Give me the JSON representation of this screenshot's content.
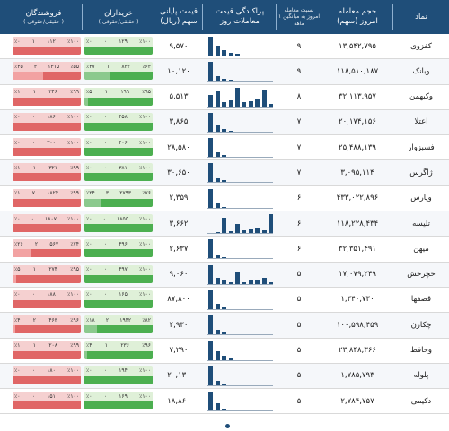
{
  "header": {
    "name": "نماد",
    "volume": "حجم معامله",
    "volume_sub": "امروز (سهم)",
    "ratio": "نسبت معامله",
    "ratio_sub": "امروز به میانگین ۱ ماهه",
    "dispersion": "پراکندگی قیمت",
    "dispersion_sub": "معاملات روز",
    "price": "قیمت پایانی",
    "price_sub": "سهم (ریال)",
    "buyers": "خریداران",
    "buyers_sub": "( حقیقی/حقوقی )",
    "sellers": "فروشندگان",
    "sellers_sub": "( حقیقی/حقوقی )"
  },
  "rows": [
    {
      "name": "کفزوی",
      "volume": "۱۳,۵۴۲,۷۹۵",
      "ratio": "۹",
      "price": "۹,۵۷۰",
      "bars": [
        0,
        0,
        0,
        0,
        0,
        3,
        4,
        7,
        12,
        22
      ],
      "buy": {
        "a": "٪۱۰۰",
        "b": "۱۲۹",
        "c": "٪۰",
        "d": "۰"
      },
      "sell": {
        "a": "٪۱۰۰",
        "b": "۱۱۲",
        "c": "٪۰",
        "d": "۱"
      }
    },
    {
      "name": "وبانک",
      "volume": "۱۱۸,۵۱۰,۱۸۷",
      "ratio": "۹",
      "price": "۱۰,۱۲۰",
      "bars": [
        0,
        0,
        0,
        0,
        0,
        0,
        2,
        3,
        6,
        20
      ],
      "buy": {
        "a": "٪۶۳",
        "b": "۸۳۲",
        "c": "٪۳۷",
        "d": "۱"
      },
      "sell": {
        "a": "٪۵۵",
        "b": "۱۳۱۵",
        "c": "٪۴۵",
        "d": "۳"
      }
    },
    {
      "name": "وکبهمن",
      "volume": "۳۲,۱۱۳,۹۵۷",
      "ratio": "۸",
      "price": "۵,۵۱۳",
      "bars": [
        3,
        18,
        8,
        6,
        5,
        20,
        7,
        5,
        16,
        12
      ],
      "buy": {
        "a": "٪۹۵",
        "b": "۱۹۹",
        "c": "٪۵",
        "d": "۱"
      },
      "sell": {
        "a": "٪۹۹",
        "b": "۲۴۶",
        "c": "٪۱",
        "d": "۱"
      }
    },
    {
      "name": "اعتلا",
      "volume": "۲۰,۱۷۴,۱۵۶",
      "ratio": "۷",
      "price": "۳,۸۶۵",
      "bars": [
        0,
        0,
        0,
        0,
        0,
        0,
        2,
        4,
        8,
        20
      ],
      "buy": {
        "a": "٪۱۰۰",
        "b": "۴۵۸",
        "c": "٪۰",
        "d": "۰"
      },
      "sell": {
        "a": "٪۱۰۰",
        "b": "۱۸۶",
        "c": "٪۰",
        "d": "۰"
      }
    },
    {
      "name": "فسبزوار",
      "volume": "۲۵,۴۸۸,۱۳۹",
      "ratio": "۷",
      "price": "۲۸,۵۸۰",
      "bars": [
        0,
        0,
        0,
        0,
        0,
        0,
        0,
        3,
        6,
        20
      ],
      "buy": {
        "a": "٪۱۰۰",
        "b": "۴۰۶",
        "c": "٪۰",
        "d": "۰"
      },
      "sell": {
        "a": "٪۱۰۰",
        "b": "۳۰۰",
        "c": "٪۰",
        "d": "۰"
      }
    },
    {
      "name": "ژاگرس",
      "volume": "۳,۰۹۵,۱۱۴",
      "ratio": "۷",
      "price": "۳۰,۶۵۰",
      "bars": [
        0,
        0,
        0,
        0,
        0,
        0,
        1,
        3,
        5,
        20
      ],
      "buy": {
        "a": "٪۱۰۰",
        "b": "۳۸۱",
        "c": "٪۰",
        "d": "۰"
      },
      "sell": {
        "a": "٪۹۹",
        "b": "۳۲۱",
        "c": "٪۱",
        "d": "۱"
      }
    },
    {
      "name": "وپارس",
      "volume": "۴۳۳,۰۲۲,۸۹۶",
      "ratio": "۶",
      "price": "۲,۳۵۹",
      "bars": [
        0,
        0,
        0,
        0,
        0,
        0,
        1,
        2,
        5,
        20
      ],
      "buy": {
        "a": "٪۷۶",
        "b": "۲۷۹۳",
        "c": "٪۲۴",
        "d": "۳"
      },
      "sell": {
        "a": "٪۹۹",
        "b": "۱۸۲۴",
        "c": "٪۱",
        "d": "۷"
      }
    },
    {
      "name": "تلیسه",
      "volume": "۱۱۸,۲۲۸,۴۳۴",
      "ratio": "۶",
      "price": "۳,۶۶۲",
      "bars": [
        20,
        4,
        6,
        5,
        4,
        10,
        3,
        16,
        2,
        1
      ],
      "buy": {
        "a": "٪۱۰۰",
        "b": "۱۸۵۵",
        "c": "٪۰",
        "d": "۰"
      },
      "sell": {
        "a": "٪۱۰۰",
        "b": "۱۸۰۷",
        "c": "٪۰",
        "d": "۰"
      }
    },
    {
      "name": "میهن",
      "volume": "۳۲,۳۵۱,۴۹۱",
      "ratio": "۶",
      "price": "۲,۶۳۷",
      "bars": [
        0,
        0,
        0,
        0,
        0,
        0,
        0,
        2,
        4,
        20
      ],
      "buy": {
        "a": "٪۱۰۰",
        "b": "۴۹۶",
        "c": "٪۰",
        "d": "۰"
      },
      "sell": {
        "a": "٪۷۴",
        "b": "۵۶۷",
        "c": "٪۲۶",
        "d": "۲"
      }
    },
    {
      "name": "خچرخش",
      "volume": "۱۷,۰۷۹,۲۴۹",
      "ratio": "۵",
      "price": "۹,۰۶۰",
      "bars": [
        1,
        3,
        2,
        2,
        1,
        6,
        1,
        2,
        3,
        9
      ],
      "buy": {
        "a": "٪۱۰۰",
        "b": "۴۹۷",
        "c": "٪۰",
        "d": "۰"
      },
      "sell": {
        "a": "٪۹۵",
        "b": "۲۷۴",
        "c": "٪۵",
        "d": "۱"
      }
    },
    {
      "name": "قصفها",
      "volume": "۱,۳۴۰,۷۳۰",
      "ratio": "۵",
      "price": "۸۷,۸۰۰",
      "bars": [
        0,
        0,
        0,
        0,
        0,
        0,
        1,
        3,
        6,
        20
      ],
      "buy": {
        "a": "٪۱۰۰",
        "b": "۱۶۵",
        "c": "٪۰",
        "d": "۰"
      },
      "sell": {
        "a": "٪۱۰۰",
        "b": "۱۸۸",
        "c": "٪۰",
        "d": "۰"
      }
    },
    {
      "name": "چکارن",
      "volume": "۱۰۰,۵۹۸,۴۵۹",
      "ratio": "۵",
      "price": "۲,۹۳۰",
      "bars": [
        0,
        0,
        0,
        0,
        0,
        0,
        1,
        3,
        6,
        20
      ],
      "buy": {
        "a": "٪۸۲",
        "b": "۱۹۴۲",
        "c": "٪۱۸",
        "d": "۲"
      },
      "sell": {
        "a": "٪۹۶",
        "b": "۴۶۳",
        "c": "٪۴",
        "d": "۲"
      }
    },
    {
      "name": "وحافظ",
      "volume": "۲۳,۸۴۸,۳۶۶",
      "ratio": "۵",
      "price": "۷,۲۹۰",
      "bars": [
        0,
        0,
        0,
        0,
        0,
        0,
        2,
        5,
        10,
        20
      ],
      "buy": {
        "a": "٪۹۶",
        "b": "۲۳۶",
        "c": "٪۴",
        "d": "۱"
      },
      "sell": {
        "a": "٪۹۹",
        "b": "۲۰۸",
        "c": "٪۱",
        "d": "۱"
      }
    },
    {
      "name": "پلوله",
      "volume": "۱,۷۸۵,۷۹۳",
      "ratio": "۵",
      "price": "۲۰,۱۳۰",
      "bars": [
        0,
        0,
        0,
        0,
        0,
        0,
        0,
        2,
        5,
        20
      ],
      "buy": {
        "a": "٪۱۰۰",
        "b": "۱۹۴",
        "c": "٪۰",
        "d": "۰"
      },
      "sell": {
        "a": "٪۱۰۰",
        "b": "۱۸۰",
        "c": "٪۰",
        "d": "۰"
      }
    },
    {
      "name": "دکیمی",
      "volume": "۲,۷۸۴,۷۵۷",
      "ratio": "۵",
      "price": "۱۸,۸۶۰",
      "bars": [
        0,
        0,
        0,
        0,
        0,
        0,
        1,
        3,
        8,
        20
      ],
      "buy": {
        "a": "٪۱۰۰",
        "b": "۱۶۹",
        "c": "٪۰",
        "d": "۰"
      },
      "sell": {
        "a": "٪۱۰۰",
        "b": "۱۵۱",
        "c": "٪۰",
        "d": "۰"
      }
    }
  ]
}
